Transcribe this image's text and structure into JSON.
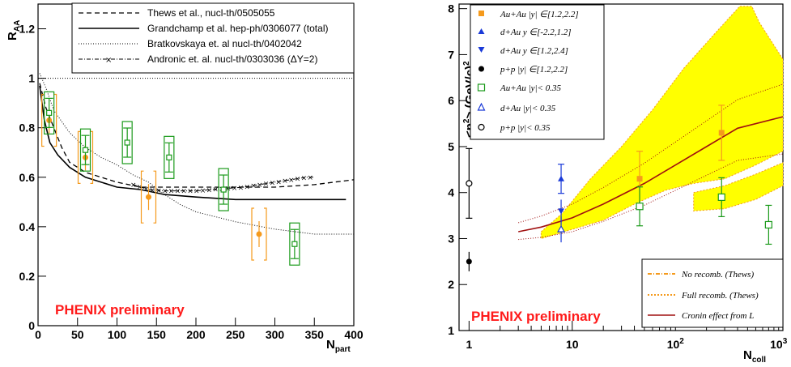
{
  "chart_data": [
    {
      "type": "scatter",
      "xlabel": "N_part",
      "ylabel": "R_AA",
      "xlim": [
        0,
        400
      ],
      "ylim": [
        0,
        1.3
      ],
      "x_ticks": [
        "0",
        "50",
        "100",
        "150",
        "200",
        "250",
        "300",
        "350",
        "400"
      ],
      "y_ticks": [
        "0",
        "0.2",
        "0.4",
        "0.6",
        "0.8",
        "1",
        "1.2"
      ],
      "annotation": "PHENIX preliminary",
      "legend": [
        "Thews et al., nucl-th/0505055",
        "Grandchamp et al. hep-ph/0306077 (total)",
        "Bratkovskaya et. al nucl-th/0402042",
        "Andronic et. al. nucl-th/0303036 (ΔY=2)"
      ],
      "colors": {
        "forward": "#f59a1c",
        "mid": "#1a9a1a"
      },
      "points_forward": {
        "x": [
          14,
          60,
          140,
          280
        ],
        "y": [
          0.83,
          0.68,
          0.52,
          0.37
        ]
      },
      "points_mid": {
        "x": [
          14,
          60,
          113,
          166,
          235,
          325
        ],
        "y": [
          0.86,
          0.71,
          0.74,
          0.68,
          0.55,
          0.33
        ]
      },
      "curves": {
        "thews": {
          "x": [
            2,
            10,
            20,
            30,
            40,
            60,
            80,
            100,
            130,
            160,
            200,
            250,
            300,
            350,
            400
          ],
          "y": [
            0.98,
            0.88,
            0.8,
            0.72,
            0.66,
            0.62,
            0.6,
            0.58,
            0.56,
            0.56,
            0.56,
            0.56,
            0.56,
            0.57,
            0.59
          ]
        },
        "grandchamp": {
          "x": [
            2,
            8,
            15,
            25,
            40,
            60,
            80,
            100,
            130,
            160,
            200,
            250,
            300,
            350,
            390
          ],
          "y": [
            0.97,
            0.83,
            0.74,
            0.69,
            0.64,
            0.6,
            0.58,
            0.56,
            0.55,
            0.53,
            0.52,
            0.51,
            0.51,
            0.51,
            0.51
          ]
        },
        "bratkovskaya": {
          "x": [
            2,
            10,
            20,
            40,
            60,
            80,
            100,
            120,
            140,
            160,
            180,
            200,
            250,
            300,
            350,
            400
          ],
          "y": [
            1.02,
            0.96,
            0.87,
            0.78,
            0.72,
            0.68,
            0.65,
            0.61,
            0.58,
            0.53,
            0.49,
            0.46,
            0.42,
            0.39,
            0.37,
            0.37
          ]
        },
        "andronic": {
          "x": [
            120,
            140,
            160,
            180,
            200,
            220,
            240,
            260,
            280,
            300,
            320,
            340,
            350
          ],
          "y": [
            0.57,
            0.55,
            0.545,
            0.545,
            0.545,
            0.55,
            0.555,
            0.56,
            0.57,
            0.58,
            0.59,
            0.6,
            0.6
          ]
        }
      }
    },
    {
      "type": "scatter",
      "xlabel": "N_coll",
      "ylabel": "<p_T^2> (GeV/c)^2",
      "xlim": [
        0.8,
        1100
      ],
      "ylim": [
        1,
        8.1
      ],
      "x_scale": "log",
      "x_ticks": [
        "1",
        "10",
        "10^2",
        "10^3"
      ],
      "y_ticks": [
        "1",
        "2",
        "3",
        "4",
        "5",
        "6",
        "7",
        "8"
      ],
      "annotation": "PHENIX preliminary",
      "legend": [
        "Au+Au |y| ∈[1.2,2.2]",
        "d+Au y ∈[-2.2,1.2]",
        "d+Au y ∈[1.2,2.4]",
        "p+p |y| ∈[1.2,2.2]",
        "Au+Au |y|< 0.35",
        "d+Au |y|< 0.35",
        "p+p |y|< 0.35"
      ],
      "legend2": [
        "No recomb. (Thews)",
        "Full recomb. (Thews)",
        "Cronin effect from L"
      ],
      "points": {
        "auau_fwd": {
          "x": [
            45,
            280
          ],
          "y": [
            4.3,
            5.3
          ]
        },
        "dau_back": {
          "x": [
            7.8
          ],
          "y": [
            4.3
          ]
        },
        "dau_fwd": {
          "x": [
            7.8
          ],
          "y": [
            3.6
          ]
        },
        "pp_fwd": {
          "x": [
            1
          ],
          "y": [
            2.5
          ]
        },
        "auau_mid": {
          "x": [
            45,
            280,
            800
          ],
          "y": [
            3.7,
            3.9,
            3.3
          ]
        },
        "dau_mid": {
          "x": [
            7.8
          ],
          "y": [
            3.2
          ]
        },
        "pp_mid": {
          "x": [
            1
          ],
          "y": [
            4.2
          ]
        }
      }
    }
  ]
}
